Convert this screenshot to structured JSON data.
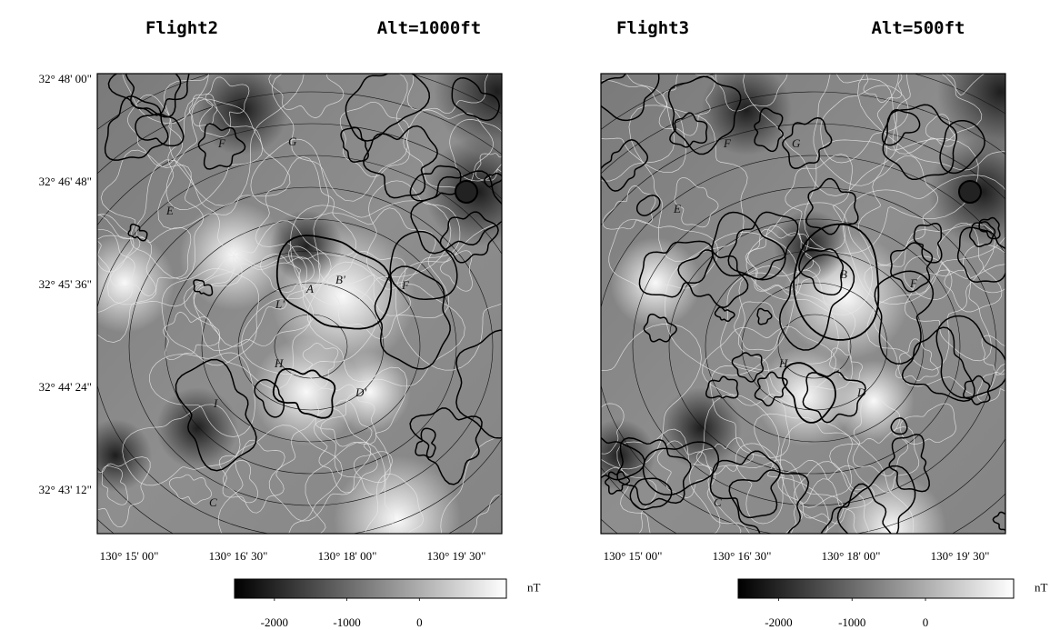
{
  "panels": [
    {
      "title": "Flight2",
      "altitude": "Alt=1000ft",
      "y_tick_labels": [
        "32° 48' 00\"",
        "32° 46' 48\"",
        "32° 45' 36\"",
        "32° 44' 24\"",
        "32° 43' 12\""
      ],
      "x_tick_labels": [
        "130° 15' 00\"",
        "130° 16' 30\"",
        "130° 18' 00\"",
        "130° 19' 30\""
      ],
      "feature_labels": [
        "F",
        "G",
        "E",
        "A",
        "B'",
        "F",
        "L'",
        "H",
        "D'",
        "I",
        "C"
      ],
      "colorbar": {
        "unit": "nT",
        "range": [
          -2550,
          1200
        ],
        "ticks": [
          -2000,
          -1000,
          0
        ]
      }
    },
    {
      "title": "Flight3",
      "altitude": "Alt=500ft",
      "y_tick_labels": [],
      "x_tick_labels": [
        "130° 15' 00\"",
        "130° 16' 30\"",
        "130° 18' 00\"",
        "130° 19' 30\""
      ],
      "feature_labels": [
        "F",
        "G",
        "E",
        "B",
        "F",
        "H",
        "D",
        "C"
      ],
      "colorbar": {
        "unit": "nT",
        "range": [
          -2550,
          1200
        ],
        "ticks": [
          -2000,
          -1000,
          0
        ]
      }
    }
  ]
}
